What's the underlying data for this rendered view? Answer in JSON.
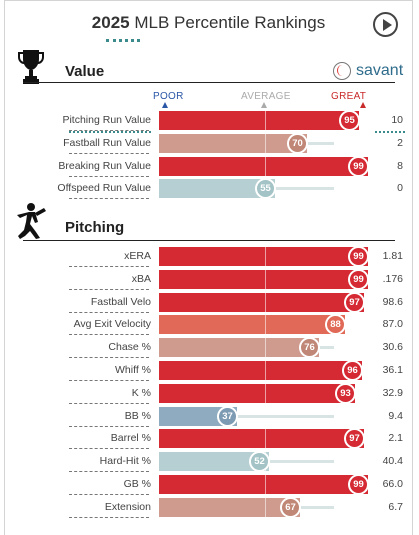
{
  "title": {
    "year": "2025",
    "text": "MLB Percentile Rankings"
  },
  "brand": {
    "label": "savant"
  },
  "scale": {
    "poor": "POOR",
    "average": "AVERAGE",
    "great": "GREAT"
  },
  "colors": {
    "great": "#d52a33",
    "good": "#e06a57",
    "above_avg": "#cf9b8e",
    "below_avg": "#b6cfd2",
    "poor": "#8fabc0"
  },
  "sections": [
    {
      "name": "Value",
      "icon": "trophy-icon",
      "rows": [
        {
          "metric": "Pitching Run Value",
          "percentile": 95,
          "value": "10",
          "tier": "great"
        },
        {
          "metric": "Fastball Run Value",
          "percentile": 70,
          "value": "2",
          "tier": "above_avg"
        },
        {
          "metric": "Breaking Run Value",
          "percentile": 99,
          "value": "8",
          "tier": "great"
        },
        {
          "metric": "Offspeed Run Value",
          "percentile": 55,
          "value": "0",
          "tier": "below_avg"
        }
      ]
    },
    {
      "name": "Pitching",
      "icon": "pitcher-icon",
      "rows": [
        {
          "metric": "xERA",
          "percentile": 99,
          "value": "1.81",
          "tier": "great"
        },
        {
          "metric": "xBA",
          "percentile": 99,
          "value": ".176",
          "tier": "great"
        },
        {
          "metric": "Fastball Velo",
          "percentile": 97,
          "value": "98.6",
          "tier": "great"
        },
        {
          "metric": "Avg Exit Velocity",
          "percentile": 88,
          "value": "87.0",
          "tier": "good"
        },
        {
          "metric": "Chase %",
          "percentile": 76,
          "value": "30.6",
          "tier": "above_avg"
        },
        {
          "metric": "Whiff %",
          "percentile": 96,
          "value": "36.1",
          "tier": "great"
        },
        {
          "metric": "K %",
          "percentile": 93,
          "value": "32.9",
          "tier": "great"
        },
        {
          "metric": "BB %",
          "percentile": 37,
          "value": "9.4",
          "tier": "poor"
        },
        {
          "metric": "Barrel %",
          "percentile": 97,
          "value": "2.1",
          "tier": "great"
        },
        {
          "metric": "Hard-Hit %",
          "percentile": 52,
          "value": "40.4",
          "tier": "below_avg"
        },
        {
          "metric": "GB %",
          "percentile": 99,
          "value": "66.0",
          "tier": "great"
        },
        {
          "metric": "Extension",
          "percentile": 67,
          "value": "6.7",
          "tier": "above_avg"
        }
      ]
    }
  ]
}
